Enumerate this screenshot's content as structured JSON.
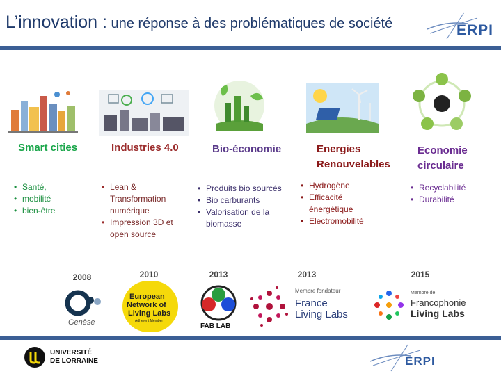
{
  "header": {
    "title_main": "L’innovation :",
    "title_rest": "une réponse à des problématiques de société",
    "logo_text": "ERPI"
  },
  "colors": {
    "rule": "#3b5f95",
    "title": "#1f3a6b",
    "green": "#1aa64a",
    "red": "#9b2c2c",
    "purple": "#6a2c91",
    "accent_gold": "#f5d90a"
  },
  "themes": [
    {
      "title": "Smart cities",
      "bullets": [
        "Santé,",
        "mobilité",
        "bien-être"
      ],
      "icon": "city-icon"
    },
    {
      "title": "Industries 4.0",
      "bullets": [
        "Lean & Transformation numérique",
        "Impression 3D et open source"
      ],
      "icon": "industry-icon"
    },
    {
      "title": "Bio-économie",
      "bullets": [
        "Produits bio sourcés",
        "Bio carburants",
        "Valorisation de la biomasse"
      ],
      "icon": "bio-icon"
    },
    {
      "title_line1": "Energies",
      "title_line2": "Renouvelables",
      "bullets": [
        "Hydrogène",
        "Efficacité énergétique",
        "Electromobilité"
      ],
      "icon": "energy-icon"
    },
    {
      "title_line1": "Economie",
      "title_line2": "circulaire",
      "bullets": [
        "Recyclabilité",
        "Durabilité"
      ],
      "icon": "circular-icon"
    }
  ],
  "timeline": [
    {
      "year": "2008",
      "caption": "Genèse"
    },
    {
      "year": "2010",
      "logo_line1": "European",
      "logo_line2": "Network of",
      "logo_line3": "Living Labs",
      "logo_sub": "Adherent Member"
    },
    {
      "year": "2013",
      "logo_text": "FAB LAB"
    },
    {
      "year": "2013",
      "logo_small": "Membre fondateur",
      "logo_line1": "France",
      "logo_line2": "Living Labs"
    },
    {
      "year": "2015",
      "logo_small": "Membre de",
      "logo_line1": "Francophonie",
      "logo_line2": "Living Labs"
    }
  ],
  "footer": {
    "uni_line1": "UNIVERSITÉ",
    "uni_line2": "DE LORRAINE",
    "logo_text": "ERPI"
  }
}
